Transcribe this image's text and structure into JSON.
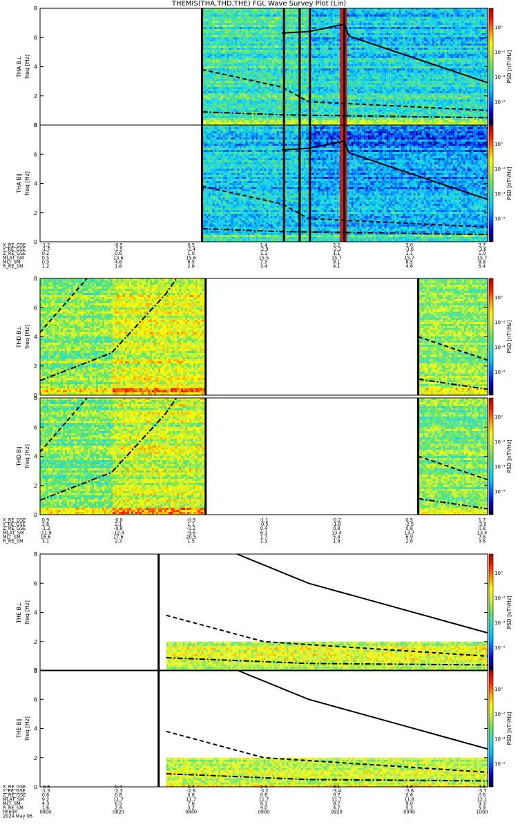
{
  "title": "THEMIS(THA,THD,THE) FGL Wave Survey Plot (Lin)",
  "colors": {
    "spec_stops": [
      "#000040",
      "#0000c8",
      "#0064ff",
      "#00c8ff",
      "#32dcc8",
      "#64e664",
      "#c8f03c",
      "#ffff00",
      "#ff9600",
      "#ff1e00",
      "#aa0000"
    ],
    "fit_line": "#000000"
  },
  "panels": [
    {
      "label": "THA B⊥",
      "probe": "THA",
      "ylabel": "freq [Hz]",
      "yticks": [
        "0",
        "2",
        "4",
        "6",
        "8"
      ],
      "ylim": [
        0,
        8
      ],
      "cbar_label": "PSD [nT²/Hz]",
      "cbar_ticks": [
        "10⁰",
        "10⁻²",
        "10⁻⁴",
        "10⁻⁶"
      ],
      "data_segments": [
        [
          0.362,
          1.0
        ]
      ],
      "level": 0.42,
      "gap_markers": [
        0.362,
        0.545,
        0.58,
        0.603,
        0.68
      ],
      "red_bands": [
        [
          0.67,
          0.686
        ]
      ],
      "lines": {
        "solid": {
          "segments": [
            [
              0.54,
              6.3,
              0.6,
              6.4,
              0.68,
              6.9,
              0.69,
              6.1,
              1.0,
              2.9
            ]
          ]
        },
        "dashed": {
          "segments": [
            [
              0.362,
              3.8,
              0.54,
              2.6,
              0.6,
              1.6,
              1.0,
              1.0
            ]
          ]
        },
        "dashdot": {
          "segments": [
            [
              0.362,
              0.9,
              0.54,
              0.7,
              1.0,
              0.5
            ]
          ]
        }
      }
    },
    {
      "label": "THA B∥",
      "probe": "THA",
      "ylabel": "freq [Hz]",
      "yticks": [
        "0",
        "2",
        "4",
        "6",
        "8"
      ],
      "ylim": [
        0,
        8
      ],
      "cbar_label": "PSD [nT²/Hz]",
      "cbar_ticks": [
        "10⁰",
        "10⁻²",
        "10⁻⁴",
        "10⁻⁶"
      ],
      "data_segments": [
        [
          0.362,
          1.0
        ]
      ],
      "level": 0.33,
      "gap_markers": [
        0.362,
        0.545,
        0.58,
        0.603,
        0.68
      ],
      "red_bands": [
        [
          0.67,
          0.686
        ]
      ],
      "lines": {
        "solid": {
          "segments": [
            [
              0.54,
              6.3,
              0.6,
              6.4,
              0.68,
              6.9,
              0.69,
              6.1,
              1.0,
              2.9
            ]
          ]
        },
        "dashed": {
          "segments": [
            [
              0.362,
              3.8,
              0.54,
              2.6,
              0.6,
              1.6,
              1.0,
              1.0
            ]
          ]
        },
        "dashdot": {
          "segments": [
            [
              0.362,
              0.9,
              0.54,
              0.7,
              1.0,
              0.5
            ]
          ]
        }
      }
    },
    {
      "label": "THD B⊥",
      "probe": "THD",
      "ylabel": "freq [Hz]",
      "yticks": [
        "0",
        "2",
        "4",
        "6",
        "8"
      ],
      "ylim": [
        0,
        8
      ],
      "cbar_label": "PSD [nT²/Hz]",
      "cbar_ticks": [
        "10⁰",
        "10⁻²",
        "10⁻⁴",
        "10⁻⁶"
      ],
      "data_segments": [
        [
          0.0,
          0.37
        ],
        [
          0.845,
          1.0
        ]
      ],
      "level": 0.55,
      "gap_markers": [
        0.37,
        0.845
      ],
      "red_bands": [],
      "lines": {
        "dashed": {
          "segments": [
            [
              0.0,
              4.3,
              0.105,
              8.0
            ],
            [
              0.845,
              4.0,
              1.0,
              2.4
            ]
          ]
        },
        "dashdot": {
          "segments": [
            [
              0.0,
              1.0,
              0.16,
              2.9,
              0.28,
              6.9,
              0.305,
              8.0
            ],
            [
              0.845,
              1.1,
              1.0,
              0.4
            ]
          ]
        }
      }
    },
    {
      "label": "THD B∥",
      "probe": "THD",
      "ylabel": "freq [Hz]",
      "yticks": [
        "0",
        "2",
        "4",
        "6",
        "8"
      ],
      "ylim": [
        0,
        8
      ],
      "cbar_label": "PSD [nT²/Hz]",
      "cbar_ticks": [
        "10⁰",
        "10⁻²",
        "10⁻⁴",
        "10⁻⁶"
      ],
      "data_segments": [
        [
          0.0,
          0.37
        ],
        [
          0.845,
          1.0
        ]
      ],
      "level": 0.52,
      "gap_markers": [
        0.37,
        0.845
      ],
      "red_bands": [],
      "lines": {
        "dashed": {
          "segments": [
            [
              0.0,
              4.3,
              0.105,
              8.0
            ],
            [
              0.845,
              4.0,
              1.0,
              2.4
            ]
          ]
        },
        "dashdot": {
          "segments": [
            [
              0.0,
              1.0,
              0.16,
              2.9,
              0.28,
              6.9,
              0.305,
              8.0
            ],
            [
              0.845,
              1.1,
              1.0,
              0.4
            ]
          ]
        }
      }
    },
    {
      "label": "THE B⊥",
      "probe": "THE",
      "ylabel": "freq [Hz]",
      "yticks": [
        "0",
        "2",
        "4",
        "6",
        "8"
      ],
      "ylim": [
        0,
        8
      ],
      "cbar_label": "PSD [nT²/Hz]",
      "cbar_ticks": [
        "10⁰",
        "10⁻²",
        "10⁻⁴",
        "10⁻⁶"
      ],
      "data_segments": [
        [
          0.282,
          1.0
        ]
      ],
      "data_fmax": 2.0,
      "level": 0.62,
      "gap_markers": [
        0.265
      ],
      "red_bands": [],
      "lines": {
        "solid": {
          "segments": [
            [
              0.44,
              8.0,
              0.6,
              6.0,
              0.8,
              4.3,
              1.0,
              2.6
            ]
          ]
        },
        "dashed": {
          "segments": [
            [
              0.282,
              3.8,
              0.5,
              2.0,
              1.0,
              1.0
            ]
          ]
        },
        "dashdot": {
          "segments": [
            [
              0.282,
              0.9,
              0.6,
              0.5,
              1.0,
              0.4
            ]
          ]
        }
      }
    },
    {
      "label": "THE B∥",
      "probe": "THE",
      "ylabel": "freq [Hz]",
      "yticks": [
        "0",
        "2",
        "4",
        "6",
        "8"
      ],
      "ylim": [
        0,
        8
      ],
      "cbar_label": "PSD [nT²/Hz]",
      "cbar_ticks": [
        "10⁰",
        "10⁻²",
        "10⁻⁴",
        "10⁻⁶"
      ],
      "data_segments": [
        [
          0.282,
          1.0
        ]
      ],
      "data_fmax": 2.0,
      "level": 0.63,
      "gap_markers": [
        0.265
      ],
      "red_bands": [],
      "lines": {
        "solid": {
          "segments": [
            [
              0.44,
              8.0,
              0.6,
              6.0,
              0.8,
              4.3,
              1.0,
              2.6
            ]
          ]
        },
        "dashed": {
          "segments": [
            [
              0.282,
              3.8,
              0.5,
              2.0,
              1.0,
              1.0
            ]
          ]
        },
        "dashdot": {
          "segments": [
            [
              0.282,
              0.9,
              0.6,
              0.5,
              1.0,
              0.4
            ]
          ]
        }
      }
    }
  ],
  "ephemeris_blocks": [
    {
      "rows": [
        {
          "label": "X_RE_GSE",
          "values": [
            "-1.2",
            "-0.5",
            "0.5",
            "1.4",
            "2.2",
            "3.0",
            "3.7"
          ]
        },
        {
          "label": "Y_RE_GSE",
          "values": [
            "-1.7",
            "-1.5",
            "-2.4",
            "-2.9",
            "-3.3",
            "-3.6",
            "-3.6"
          ]
        },
        {
          "label": "Z_RE_GSE",
          "values": [
            "0.2",
            "0.6",
            "1.0",
            "1.1",
            "1.1",
            "1.1",
            "1.0"
          ]
        },
        {
          "label": "MLAT_SM",
          "values": [
            "0.5",
            "13.6",
            "15.6",
            "15.5",
            "15.7",
            "15.7",
            "15.7"
          ]
        },
        {
          "label": "MLT_SM",
          "values": [
            "0.3",
            "4.6",
            "6.5",
            "7.5",
            "8.1",
            "8.5",
            "8.8"
          ]
        },
        {
          "label": "R_RE_SM",
          "values": [
            "1.2",
            "1.8",
            "2.6",
            "3.4",
            "4.1",
            "4.6",
            "5.4"
          ]
        }
      ]
    },
    {
      "rows": [
        {
          "label": "X_RE_GSE",
          "values": [
            "0.9",
            "-0.0",
            "-0.9",
            "-1.1",
            "-0.2",
            "0.5",
            "1.7"
          ]
        },
        {
          "label": "Y_RE_GSE",
          "values": [
            "2.6",
            "2.1",
            "1.1",
            "-0.5",
            "-1.8",
            "-2.5",
            "-3.0"
          ]
        },
        {
          "label": "Z_RE_GSE",
          "values": [
            "-1.3",
            "-0.8",
            "-0.2",
            "0.4",
            "0.8",
            "0.8",
            "0.8"
          ]
        },
        {
          "label": "MLAT_SM",
          "values": [
            "-11.9",
            "-12.4",
            "-9.6",
            "6.3",
            "13.4",
            "13.7",
            "13.4"
          ]
        },
        {
          "label": "MLT_SM",
          "values": [
            "16.6",
            "17.6",
            "20.5",
            "1.7",
            "5.4",
            "6.9",
            "7.8"
          ]
        },
        {
          "label": "R_RE_SM",
          "values": [
            "3.1",
            "2.3",
            "1.5",
            "1.3",
            "1.9",
            "2.8",
            "3.6"
          ]
        }
      ]
    },
    {
      "rows": [
        {
          "label": "X_RE_GSE",
          "values": [
            "-0.6",
            "0.4",
            "1.4",
            "2.3",
            "3.1",
            "3.8",
            "4.5"
          ]
        },
        {
          "label": "Y_RE_GSE",
          "values": [
            "-1.3",
            "-2.3",
            "-2.8",
            "-3.2",
            "-3.4",
            "-3.6",
            "-3.7"
          ]
        },
        {
          "label": "Z_RE_GSE",
          "values": [
            "0.6",
            "0.8",
            "0.8",
            "0.8",
            "0.7",
            "0.6",
            "0.6"
          ]
        },
        {
          "label": "MLAT_SM",
          "values": [
            "9.2",
            "11.7",
            "11.7",
            "11.7",
            "11.7",
            "11.8",
            "12.1"
          ]
        },
        {
          "label": "MLT_SM",
          "values": [
            "4.3",
            "6.5",
            "7.6",
            "8.3",
            "8.7",
            "9.0",
            "9.3"
          ]
        },
        {
          "label": "R_RE_SM",
          "values": [
            "1.6",
            "2.4",
            "3.2",
            "4.0",
            "4.7",
            "5.3",
            "5.9"
          ]
        },
        {
          "label": "hhmm",
          "values": [
            "0800",
            "0820",
            "0840",
            "0900",
            "0920",
            "0940",
            "1000"
          ]
        },
        {
          "label": "2024 May 06",
          "values": []
        }
      ]
    }
  ],
  "chart_data": {
    "type": "heatmap",
    "title": "THEMIS(THA,THD,THE) FGL Wave Survey Plot (Lin)",
    "x": [
      "0800",
      "0820",
      "0840",
      "0900",
      "0920",
      "0940",
      "1000"
    ],
    "xlabel": "hhmm",
    "date": "2024 May 06",
    "ylabel": "freq [Hz]",
    "ylim": [
      0,
      8
    ],
    "yticks": [
      0,
      2,
      4,
      6,
      8
    ],
    "colorbar_label": "PSD [nT²/Hz]",
    "colorbar_ticks": [
      "10⁰",
      "10⁻²",
      "10⁻⁴",
      "10⁻⁶"
    ],
    "series": [
      {
        "name": "THA B⊥"
      },
      {
        "name": "THA B∥"
      },
      {
        "name": "THD B⊥"
      },
      {
        "name": "THD B∥"
      },
      {
        "name": "THE B⊥"
      },
      {
        "name": "THE B∥"
      }
    ]
  }
}
